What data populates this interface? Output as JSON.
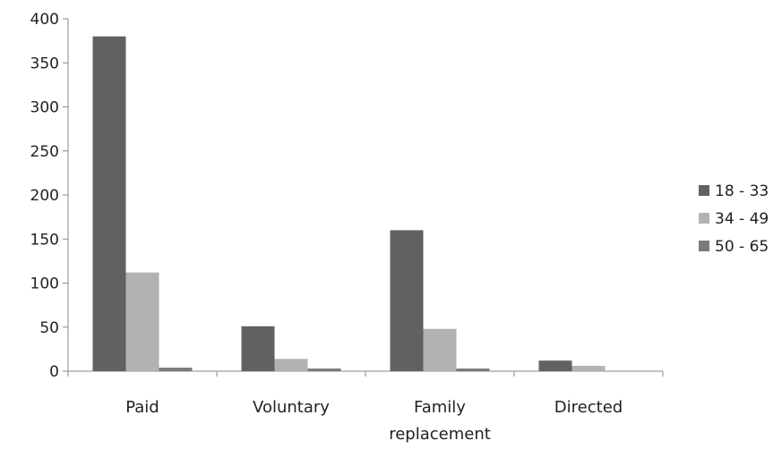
{
  "chart_data": {
    "type": "bar",
    "title": "",
    "xlabel": "",
    "ylabel": "",
    "categories": [
      "Paid",
      "Voluntary",
      "Family\nreplacement",
      "Directed"
    ],
    "series": [
      {
        "name": "18 - 33",
        "values": [
          380,
          51,
          160,
          12
        ],
        "color": "#616161"
      },
      {
        "name": "34 - 49",
        "values": [
          112,
          14,
          48,
          6
        ],
        "color": "#b2b2b2"
      },
      {
        "name": "50 - 65",
        "values": [
          4,
          3,
          3,
          0
        ],
        "color": "#7a7a7a"
      }
    ],
    "ylim": [
      0,
      400
    ],
    "yticks": [
      0,
      50,
      100,
      150,
      200,
      250,
      300,
      350,
      400
    ],
    "grid": false,
    "legend_position": "right"
  }
}
